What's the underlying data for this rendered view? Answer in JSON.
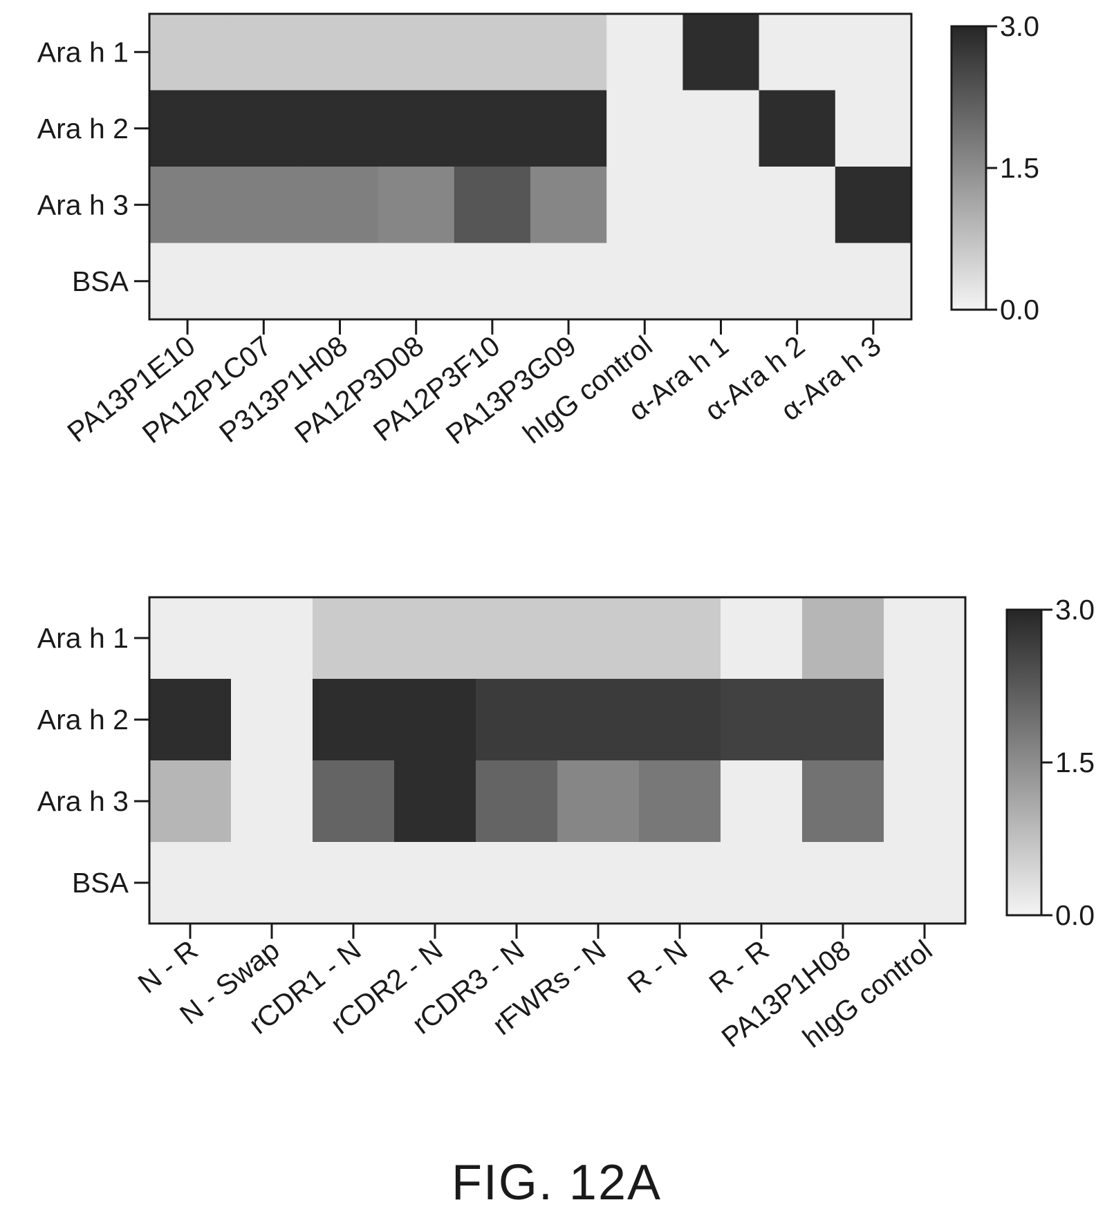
{
  "figure_label": "FIG. 12A",
  "colors": {
    "low": "#f4f4f4",
    "high": "#262626",
    "ink": "#1a1a1a"
  },
  "chart_data": [
    {
      "type": "heatmap",
      "rows": [
        "Ara h 1",
        "Ara h 2",
        "Ara h 3",
        "BSA"
      ],
      "columns": [
        "PA13P1E10",
        "PA12P1C07",
        "P313P1H08",
        "PA12P3D08",
        "PA12P3F10",
        "PA13P3G09",
        "hIgG control",
        "α-Ara h 1",
        "α-Ara h 2",
        "α-Ara h 3"
      ],
      "values": [
        [
          0.6,
          0.6,
          0.6,
          0.6,
          0.6,
          0.6,
          0.1,
          2.9,
          0.1,
          0.1
        ],
        [
          2.9,
          2.9,
          2.9,
          2.9,
          2.9,
          2.9,
          0.1,
          0.1,
          2.9,
          0.1
        ],
        [
          1.7,
          1.7,
          1.7,
          1.6,
          2.3,
          1.6,
          0.1,
          0.1,
          0.1,
          2.9
        ],
        [
          0.1,
          0.1,
          0.1,
          0.1,
          0.1,
          0.1,
          0.1,
          0.1,
          0.1,
          0.1
        ]
      ],
      "colorbar": {
        "min": 0.0,
        "max": 3.0,
        "ticks": [
          "0.0",
          "1.5",
          "3.0"
        ]
      }
    },
    {
      "type": "heatmap",
      "rows": [
        "Ara h 1",
        "Ara h 2",
        "Ara h 3",
        "BSA"
      ],
      "columns": [
        "N - R",
        "N - Swap",
        "rCDR1 - N",
        "rCDR2 - N",
        "rCDR3 - N",
        "rFWRs - N",
        "R - N",
        "R - R",
        "PA13P1H08",
        "hIgG control"
      ],
      "values": [
        [
          0.1,
          0.1,
          0.6,
          0.6,
          0.6,
          0.6,
          0.6,
          0.1,
          0.9,
          0.1
        ],
        [
          2.9,
          0.1,
          2.9,
          2.9,
          2.7,
          2.7,
          2.7,
          2.6,
          2.6,
          0.1
        ],
        [
          0.9,
          0.1,
          2.1,
          2.9,
          2.1,
          1.6,
          1.8,
          0.1,
          1.9,
          0.1
        ],
        [
          0.1,
          0.1,
          0.1,
          0.1,
          0.1,
          0.1,
          0.1,
          0.1,
          0.1,
          0.1
        ]
      ],
      "colorbar": {
        "min": 0.0,
        "max": 3.0,
        "ticks": [
          "0.0",
          "1.5",
          "3.0"
        ]
      }
    }
  ]
}
